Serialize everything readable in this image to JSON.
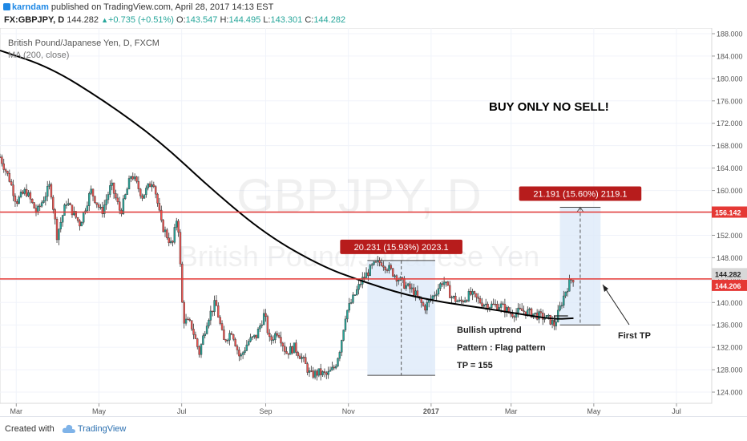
{
  "header": {
    "user": "karndam",
    "published_text": "published on TradingView.com, April 28, 2017 14:13 EST"
  },
  "ohlc": {
    "symbol": "FX:GBPJPY, D",
    "last": "144.282",
    "change": "+0.735 (+0.51%)",
    "o_label": "O:",
    "o": "143.547",
    "h_label": "H:",
    "h": "144.495",
    "l_label": "L:",
    "l": "143.301",
    "c_label": "C:",
    "c": "144.282"
  },
  "footer": {
    "created_with": "Created with",
    "brand": "TradingView"
  },
  "colors": {
    "up": "#26a69a",
    "down": "#ef5350",
    "candle_border": "#333333",
    "ma": "#000000",
    "hline": "#e53935",
    "range_fill": "#ddeaf9",
    "callout": "#b71c1c"
  },
  "chart_data": {
    "type": "candlestick",
    "title": "British Pound/Japanese Yen, D, FXCM",
    "subtitle": "MA (200, close)",
    "watermark_symbol": "GBPJPY, D",
    "watermark_name": "British Pound/Japanese Yen",
    "ylim": [
      122,
      189
    ],
    "y_ticks": [
      "188.000",
      "184.000",
      "180.000",
      "176.000",
      "172.000",
      "168.000",
      "164.000",
      "160.000",
      "156.000",
      "152.000",
      "148.000",
      "144.000",
      "140.000",
      "136.000",
      "132.000",
      "128.000",
      "124.000"
    ],
    "x_ticks": [
      {
        "label": "Mar",
        "day": -125
      },
      {
        "label": "May",
        "day": -64
      },
      {
        "label": "Jul",
        "day": -3
      },
      {
        "label": "Sep",
        "day": 59
      },
      {
        "label": "Nov",
        "day": 120
      },
      {
        "label": "2017",
        "day": 181
      },
      {
        "label": "Mar",
        "day": 240
      },
      {
        "label": "May",
        "day": 301
      },
      {
        "label": "Jul",
        "day": 362
      }
    ],
    "xlim_days": [
      -137,
      388
    ],
    "price_path": [
      [
        -137,
        166
      ],
      [
        -130,
        162
      ],
      [
        -125,
        158
      ],
      [
        -118,
        160
      ],
      [
        -110,
        156
      ],
      [
        -100,
        161
      ],
      [
        -95,
        152
      ],
      [
        -88,
        158
      ],
      [
        -78,
        154
      ],
      [
        -70,
        160
      ],
      [
        -62,
        156
      ],
      [
        -55,
        161
      ],
      [
        -48,
        156
      ],
      [
        -40,
        163
      ],
      [
        -32,
        159
      ],
      [
        -24,
        162
      ],
      [
        -18,
        154
      ],
      [
        -10,
        150
      ],
      [
        -6,
        156
      ],
      [
        -2,
        137
      ],
      [
        4,
        136
      ],
      [
        10,
        131
      ],
      [
        16,
        137
      ],
      [
        22,
        140
      ],
      [
        28,
        133
      ],
      [
        34,
        135
      ],
      [
        40,
        130
      ],
      [
        46,
        133
      ],
      [
        52,
        134
      ],
      [
        58,
        138
      ],
      [
        62,
        133
      ],
      [
        68,
        135
      ],
      [
        74,
        131
      ],
      [
        80,
        132
      ],
      [
        86,
        130
      ],
      [
        92,
        127
      ],
      [
        98,
        127.5
      ],
      [
        104,
        127
      ],
      [
        110,
        128.5
      ],
      [
        114,
        132
      ],
      [
        118,
        138
      ],
      [
        124,
        141
      ],
      [
        130,
        144
      ],
      [
        138,
        146.5
      ],
      [
        144,
        147.3
      ],
      [
        150,
        146
      ],
      [
        156,
        144.5
      ],
      [
        162,
        143
      ],
      [
        168,
        142
      ],
      [
        176,
        139
      ],
      [
        182,
        141
      ],
      [
        190,
        144
      ],
      [
        196,
        141
      ],
      [
        202,
        140
      ],
      [
        210,
        141.5
      ],
      [
        218,
        140
      ],
      [
        224,
        139.5
      ],
      [
        232,
        139.5
      ],
      [
        240,
        138
      ],
      [
        248,
        138.5
      ],
      [
        256,
        138
      ],
      [
        262,
        137.5
      ],
      [
        268,
        137
      ],
      [
        272,
        136
      ],
      [
        276,
        139
      ],
      [
        280,
        142
      ],
      [
        284,
        144
      ],
      [
        286,
        144.28
      ]
    ],
    "ma_path": [
      [
        -137,
        185
      ],
      [
        -100,
        182
      ],
      [
        -60,
        176
      ],
      [
        -20,
        169
      ],
      [
        20,
        160
      ],
      [
        60,
        152
      ],
      [
        100,
        146.5
      ],
      [
        130,
        143.8
      ],
      [
        160,
        141.5
      ],
      [
        190,
        140
      ],
      [
        220,
        139
      ],
      [
        250,
        137.8
      ],
      [
        272,
        137
      ],
      [
        286,
        137.2
      ]
    ],
    "hlines": [
      {
        "value": 156.142,
        "label": "156.142"
      },
      {
        "value": 144.206,
        "label": "144.206"
      }
    ],
    "last_price": {
      "value": 144.282,
      "label": "144.282"
    },
    "ranges": [
      {
        "x0": 134,
        "x1": 184,
        "y_low": 127,
        "y_high": 147.5,
        "label": "20.231 (15.93%) 2023.1"
      },
      {
        "x0": 276,
        "x1": 306,
        "y_low": 136,
        "y_high": 157,
        "label": "21.191 (15.60%) 2119.1"
      }
    ],
    "annotations": [
      "BUY ONLY NO SELL!",
      "Bullish uptrend",
      "Pattern : Flag pattern",
      "TP = 155",
      "First TP"
    ]
  }
}
